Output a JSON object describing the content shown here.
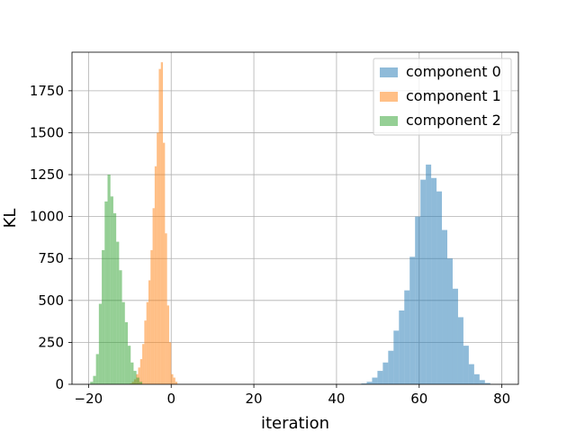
{
  "chart_data": {
    "type": "histogram",
    "xlabel": "iteration",
    "ylabel": "KL",
    "xlim": [
      -24,
      84
    ],
    "ylim": [
      0,
      1980
    ],
    "xticks": [
      -20,
      0,
      20,
      40,
      60,
      80
    ],
    "yticks": [
      0,
      250,
      500,
      750,
      1000,
      1250,
      1500,
      1750
    ],
    "grid": true,
    "legend_position": "upper-right",
    "alpha": 0.5,
    "series": [
      {
        "name": "component 0",
        "color": "#1f77b4",
        "bins": [
          [
            46.0,
            47.3,
            5
          ],
          [
            47.3,
            48.6,
            15
          ],
          [
            48.6,
            49.9,
            40
          ],
          [
            49.9,
            51.2,
            80
          ],
          [
            51.2,
            52.5,
            130
          ],
          [
            52.5,
            53.8,
            200
          ],
          [
            53.8,
            55.1,
            320
          ],
          [
            55.1,
            56.4,
            440
          ],
          [
            56.4,
            57.7,
            560
          ],
          [
            57.7,
            59.0,
            760
          ],
          [
            59.0,
            60.3,
            1000
          ],
          [
            60.3,
            61.6,
            1220
          ],
          [
            61.6,
            62.9,
            1310
          ],
          [
            62.9,
            64.2,
            1230
          ],
          [
            64.2,
            65.5,
            1150
          ],
          [
            65.5,
            66.8,
            920
          ],
          [
            66.8,
            68.1,
            750
          ],
          [
            68.1,
            69.4,
            570
          ],
          [
            69.4,
            70.7,
            400
          ],
          [
            70.7,
            72.0,
            230
          ],
          [
            72.0,
            73.3,
            120
          ],
          [
            73.3,
            74.6,
            60
          ],
          [
            74.6,
            75.9,
            25
          ],
          [
            75.9,
            77.2,
            8
          ]
        ]
      },
      {
        "name": "component 1",
        "color": "#ff7f0e",
        "bins": [
          [
            -10.0,
            -9.5,
            5
          ],
          [
            -9.5,
            -9.0,
            15
          ],
          [
            -9.0,
            -8.5,
            30
          ],
          [
            -8.5,
            -8.0,
            60
          ],
          [
            -8.0,
            -7.5,
            100
          ],
          [
            -7.5,
            -7.0,
            150
          ],
          [
            -7.0,
            -6.5,
            240
          ],
          [
            -6.5,
            -6.0,
            380
          ],
          [
            -6.0,
            -5.5,
            490
          ],
          [
            -5.5,
            -5.0,
            620
          ],
          [
            -5.0,
            -4.5,
            800
          ],
          [
            -4.5,
            -4.0,
            1050
          ],
          [
            -4.0,
            -3.5,
            1300
          ],
          [
            -3.5,
            -3.0,
            1500
          ],
          [
            -3.0,
            -2.5,
            1880
          ],
          [
            -2.5,
            -2.0,
            1920
          ],
          [
            -2.0,
            -1.5,
            1440
          ],
          [
            -1.5,
            -1.0,
            900
          ],
          [
            -1.0,
            -0.5,
            470
          ],
          [
            -0.5,
            0.0,
            250
          ],
          [
            0.0,
            0.5,
            60
          ],
          [
            0.5,
            1.0,
            40
          ],
          [
            1.0,
            1.5,
            15
          ]
        ]
      },
      {
        "name": "component 2",
        "color": "#2ca02c",
        "bins": [
          [
            -19.6,
            -18.9,
            15
          ],
          [
            -18.9,
            -18.2,
            50
          ],
          [
            -18.2,
            -17.5,
            180
          ],
          [
            -17.5,
            -16.8,
            480
          ],
          [
            -16.8,
            -16.1,
            800
          ],
          [
            -16.1,
            -15.4,
            1090
          ],
          [
            -15.4,
            -14.7,
            1250
          ],
          [
            -14.7,
            -14.0,
            1120
          ],
          [
            -14.0,
            -13.3,
            1020
          ],
          [
            -13.3,
            -12.6,
            850
          ],
          [
            -12.6,
            -11.9,
            680
          ],
          [
            -11.9,
            -11.2,
            490
          ],
          [
            -11.2,
            -10.5,
            370
          ],
          [
            -10.5,
            -9.8,
            230
          ],
          [
            -9.8,
            -9.1,
            130
          ],
          [
            -9.1,
            -8.4,
            80
          ],
          [
            -8.4,
            -7.7,
            40
          ],
          [
            -7.7,
            -7.0,
            15
          ]
        ]
      }
    ]
  }
}
